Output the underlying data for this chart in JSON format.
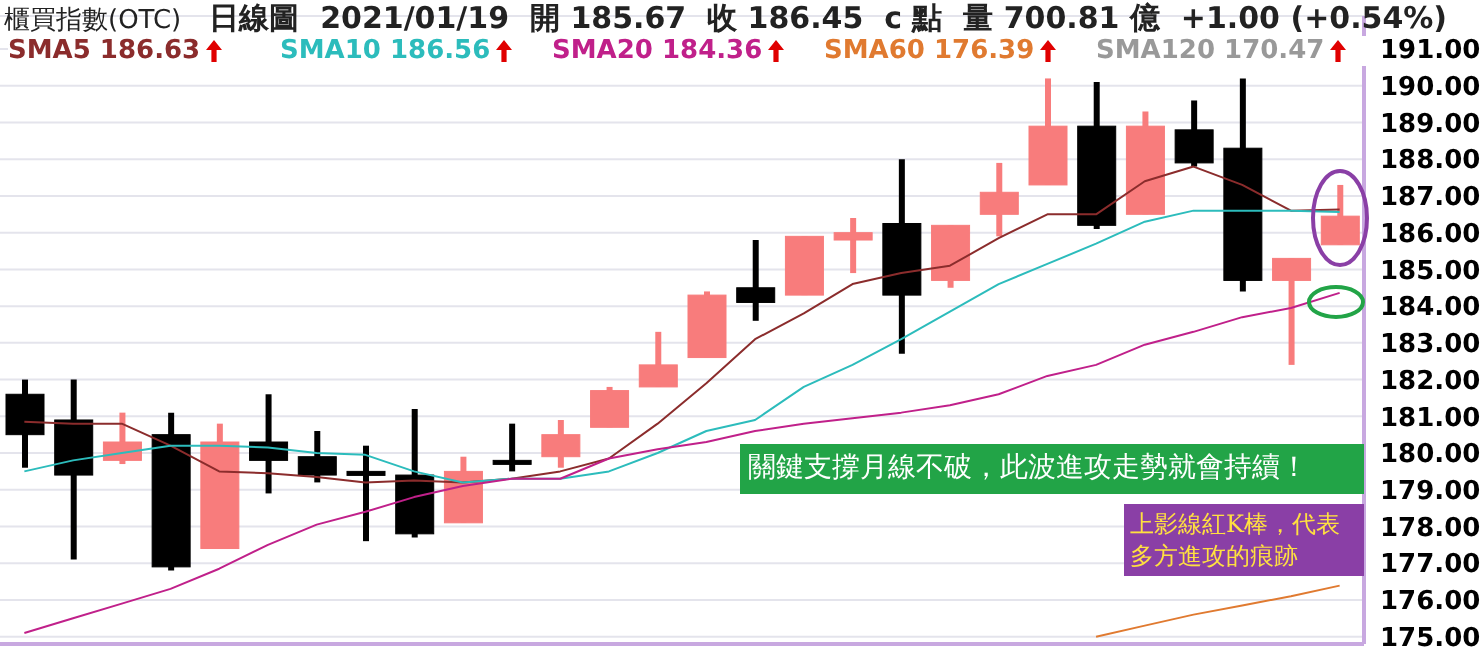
{
  "chart_data": {
    "type": "candlestick",
    "title": "櫃買指數(OTC)",
    "subtitle": "日線圖  2021/01/19  開 185.67  收 186.45  c 點  量 700.81 億  +1.00 (+0.54%)",
    "categories": [
      null,
      null,
      null,
      null,
      null,
      null,
      null,
      null,
      null,
      null,
      null,
      null,
      null,
      null,
      null,
      null,
      null,
      null,
      null,
      null,
      null,
      null,
      null,
      null,
      null,
      null,
      null,
      null
    ],
    "ohlc": [
      [
        181.6,
        182.0,
        179.6,
        180.5
      ],
      [
        180.9,
        182.0,
        177.1,
        179.4
      ],
      [
        179.8,
        181.1,
        179.7,
        180.3
      ],
      [
        180.5,
        181.1,
        176.8,
        176.9
      ],
      [
        177.4,
        180.8,
        177.4,
        180.3
      ],
      [
        180.3,
        181.6,
        178.9,
        179.8
      ],
      [
        179.9,
        180.6,
        179.2,
        179.4
      ],
      [
        179.5,
        180.2,
        177.6,
        179.4
      ],
      [
        179.4,
        181.2,
        177.7,
        177.8
      ],
      [
        178.1,
        179.9,
        178.1,
        179.5
      ],
      [
        179.8,
        180.8,
        179.5,
        179.75
      ],
      [
        179.9,
        180.9,
        179.6,
        180.5
      ],
      [
        180.7,
        181.8,
        180.7,
        181.7
      ],
      [
        181.8,
        183.3,
        181.8,
        182.4
      ],
      [
        182.6,
        184.4,
        182.6,
        184.3
      ],
      [
        184.5,
        185.8,
        183.6,
        184.1
      ],
      [
        184.3,
        185.9,
        184.3,
        185.9
      ],
      [
        185.8,
        186.4,
        184.9,
        186.0
      ],
      [
        186.25,
        188.0,
        182.7,
        184.3
      ],
      [
        184.7,
        186.2,
        184.5,
        186.2
      ],
      [
        186.5,
        187.9,
        185.9,
        187.1
      ],
      [
        187.3,
        190.2,
        187.3,
        188.9
      ],
      [
        188.9,
        190.1,
        186.1,
        186.2
      ],
      [
        186.5,
        189.3,
        186.5,
        188.9
      ],
      [
        188.8,
        189.6,
        187.8,
        187.9
      ],
      [
        188.3,
        190.2,
        184.4,
        184.7
      ],
      [
        184.7,
        185.3,
        182.4,
        185.3
      ],
      [
        185.67,
        187.3,
        185.67,
        186.45
      ]
    ],
    "colors": [
      "#000000",
      "#000000",
      "#f87c7c",
      "#000000",
      "#f87c7c",
      "#000000",
      "#000000",
      "#000000",
      "#000000",
      "#f87c7c",
      "#000000",
      "#f87c7c",
      "#f87c7c",
      "#f87c7c",
      "#f87c7c",
      "#000000",
      "#f87c7c",
      "#f87c7c",
      "#000000",
      "#f87c7c",
      "#f87c7c",
      "#f87c7c",
      "#000000",
      "#f87c7c",
      "#000000",
      "#000000",
      "#f87c7c",
      "#f87c7c"
    ],
    "series": [
      {
        "name": "SMA5 186.63",
        "type": "line",
        "color": "#8b2c2c",
        "values": [
          180.85,
          180.8,
          180.8,
          180.2,
          179.5,
          179.45,
          179.35,
          179.2,
          179.25,
          179.2,
          179.3,
          179.5,
          179.85,
          180.8,
          181.9,
          183.1,
          183.8,
          184.6,
          184.9,
          185.1,
          185.85,
          186.5,
          186.5,
          187.4,
          187.8,
          187.3,
          186.6,
          186.63
        ]
      },
      {
        "name": "SMA10 186.56",
        "type": "line",
        "color": "#2cbcbc",
        "values": [
          179.5,
          179.8,
          180.0,
          180.2,
          180.2,
          180.15,
          180.0,
          179.95,
          179.5,
          179.2,
          179.3,
          179.3,
          179.5,
          180.0,
          180.6,
          180.9,
          181.8,
          182.4,
          183.1,
          183.85,
          184.6,
          185.15,
          185.7,
          186.3,
          186.6,
          186.6,
          186.6,
          186.56
        ]
      },
      {
        "name": "SMA20 184.36",
        "type": "line",
        "color": "#c0208a",
        "values": [
          175.1,
          175.5,
          175.9,
          176.3,
          176.85,
          177.5,
          178.05,
          178.4,
          178.8,
          179.1,
          179.3,
          179.3,
          179.85,
          180.1,
          180.3,
          180.6,
          180.8,
          180.95,
          181.1,
          181.3,
          181.6,
          182.1,
          182.4,
          182.95,
          183.3,
          183.7,
          183.95,
          184.36
        ]
      },
      {
        "name": "SMA60 176.39",
        "type": "line",
        "color": "#e07a30",
        "values": [
          null,
          null,
          null,
          null,
          null,
          null,
          null,
          null,
          null,
          null,
          null,
          null,
          null,
          null,
          null,
          null,
          null,
          null,
          null,
          null,
          null,
          null,
          175.0,
          175.3,
          175.6,
          175.85,
          176.1,
          176.39
        ]
      }
    ],
    "ylim": [
      174.8,
      191.9
    ],
    "yticks": [
      {
        "value": 175,
        "label": "175.00"
      },
      {
        "value": 176,
        "label": "176.00"
      },
      {
        "value": 177,
        "label": "177.00"
      },
      {
        "value": 178,
        "label": "178.00"
      },
      {
        "value": 179,
        "label": "179.00"
      },
      {
        "value": 180,
        "label": "180.00"
      },
      {
        "value": 181,
        "label": "181.00"
      },
      {
        "value": 182,
        "label": "182.00"
      },
      {
        "value": 183,
        "label": "183.00"
      },
      {
        "value": 184,
        "label": "184.00"
      },
      {
        "value": 185,
        "label": "185.00"
      },
      {
        "value": 186,
        "label": "186.00"
      },
      {
        "value": 187,
        "label": "187.00"
      },
      {
        "value": 188,
        "label": "188.00"
      },
      {
        "value": 189,
        "label": "189.00"
      },
      {
        "value": 190,
        "label": "190.00"
      },
      {
        "value": 191,
        "label": "191.00"
      }
    ],
    "grid": "y",
    "legend": "top",
    "tick_labels": "y",
    "annotations": [
      "上影線紅K棒，代表多方進攻的痕跡",
      "關鍵支撐月線不破，此波進攻走勢就會持續！",
      "SMA120 170.47"
    ]
  }
}
